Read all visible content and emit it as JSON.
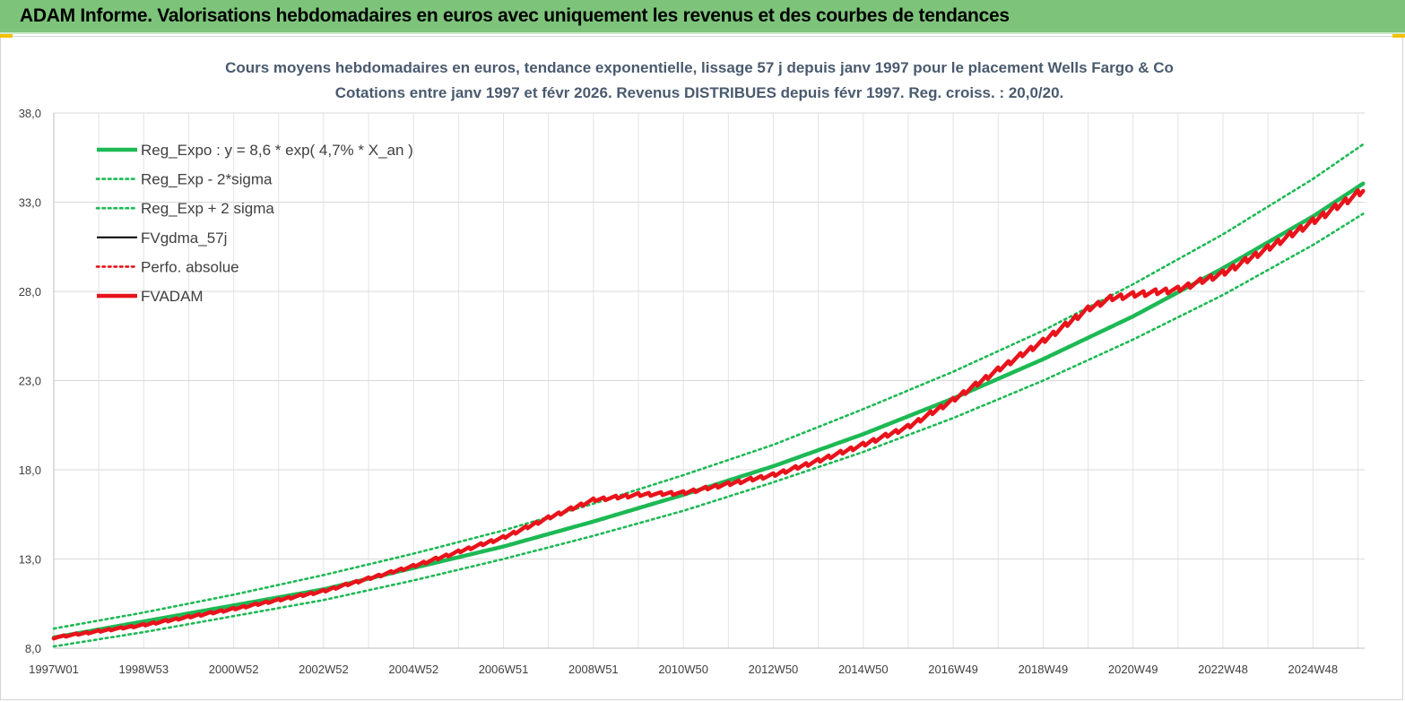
{
  "banner": {
    "title": "ADAM Informe. Valorisations hebdomadaires en euros avec uniquement les revenus et des courbes de tendances"
  },
  "colors": {
    "banner_bg": "#7dc47a",
    "trend": "#1db954",
    "fvadam": "#e8131b",
    "fvgdma": "#000000",
    "perfo": "#e8131b"
  },
  "chart_data": {
    "type": "line",
    "title": "Cours moyens hebdomadaires en euros, tendance exponentielle, lissage 57 j depuis janv 1997 pour le placement Wells Fargo & Co",
    "subtitle": "Cotations entre janv 1997 et févr 2026. Revenus DISTRIBUES depuis févr 1997. Reg. croiss. : 20,0/20.",
    "xlabel": "",
    "ylabel": "",
    "ylim": [
      8,
      38
    ],
    "y_ticks": [
      "8,0",
      "13,0",
      "18,0",
      "23,0",
      "28,0",
      "33,0",
      "38,0"
    ],
    "x_range": [
      1997.0,
      2026.15
    ],
    "x_ticks": [
      {
        "label": "1997W01",
        "year": 1997.0
      },
      {
        "label": "1998W53",
        "year": 1999.0
      },
      {
        "label": "2000W52",
        "year": 2001.0
      },
      {
        "label": "2002W52",
        "year": 2003.0
      },
      {
        "label": "2004W52",
        "year": 2005.0
      },
      {
        "label": "2006W51",
        "year": 2007.0
      },
      {
        "label": "2008W51",
        "year": 2009.0
      },
      {
        "label": "2010W50",
        "year": 2011.0
      },
      {
        "label": "2012W50",
        "year": 2013.0
      },
      {
        "label": "2014W50",
        "year": 2015.0
      },
      {
        "label": "2016W49",
        "year": 2017.0
      },
      {
        "label": "2018W49",
        "year": 2019.0
      },
      {
        "label": "2020W49",
        "year": 2021.0
      },
      {
        "label": "2022W48",
        "year": 2023.0
      },
      {
        "label": "2024W48",
        "year": 2025.0
      }
    ],
    "grid": true,
    "legend_position": "top-left",
    "series": [
      {
        "name": "Reg_Expo : y = 8,6 * exp( 4,7% *  X_an )",
        "style": "solid-thick",
        "color": "#1db954",
        "points": [
          [
            1997.0,
            8.6
          ],
          [
            1999.0,
            9.5
          ],
          [
            2001.0,
            10.4
          ],
          [
            2003.0,
            11.3
          ],
          [
            2005.0,
            12.5
          ],
          [
            2007.0,
            13.7
          ],
          [
            2009.0,
            15.1
          ],
          [
            2011.0,
            16.6
          ],
          [
            2013.0,
            18.2
          ],
          [
            2015.0,
            20.0
          ],
          [
            2017.0,
            22.0
          ],
          [
            2019.0,
            24.2
          ],
          [
            2021.0,
            26.6
          ],
          [
            2023.0,
            29.3
          ],
          [
            2025.0,
            32.2
          ],
          [
            2026.15,
            34.1
          ]
        ]
      },
      {
        "name": "Reg_Exp - 2*sigma",
        "style": "dotted",
        "color": "#1db954",
        "points": [
          [
            1997.0,
            8.1
          ],
          [
            1999.0,
            8.9
          ],
          [
            2001.0,
            9.8
          ],
          [
            2003.0,
            10.7
          ],
          [
            2005.0,
            11.8
          ],
          [
            2007.0,
            13.0
          ],
          [
            2009.0,
            14.3
          ],
          [
            2011.0,
            15.7
          ],
          [
            2013.0,
            17.3
          ],
          [
            2015.0,
            19.0
          ],
          [
            2017.0,
            20.9
          ],
          [
            2019.0,
            23.0
          ],
          [
            2021.0,
            25.3
          ],
          [
            2023.0,
            27.8
          ],
          [
            2025.0,
            30.6
          ],
          [
            2026.15,
            32.4
          ]
        ]
      },
      {
        "name": "Reg_Exp + 2 sigma",
        "style": "dotted",
        "color": "#1db954",
        "points": [
          [
            1997.0,
            9.1
          ],
          [
            1999.0,
            10.0
          ],
          [
            2001.0,
            11.0
          ],
          [
            2003.0,
            12.1
          ],
          [
            2005.0,
            13.3
          ],
          [
            2007.0,
            14.6
          ],
          [
            2009.0,
            16.1
          ],
          [
            2011.0,
            17.7
          ],
          [
            2013.0,
            19.4
          ],
          [
            2015.0,
            21.4
          ],
          [
            2017.0,
            23.5
          ],
          [
            2019.0,
            25.8
          ],
          [
            2021.0,
            28.4
          ],
          [
            2023.0,
            31.2
          ],
          [
            2025.0,
            34.3
          ],
          [
            2026.15,
            36.3
          ]
        ]
      },
      {
        "name": "FVgdma_57j",
        "style": "solid",
        "color": "#000000",
        "points": [
          [
            1997.0,
            8.6
          ],
          [
            1999.0,
            9.3
          ],
          [
            2001.0,
            10.2
          ],
          [
            2003.0,
            11.2
          ],
          [
            2005.0,
            12.6
          ],
          [
            2007.0,
            14.2
          ],
          [
            2008.0,
            15.3
          ],
          [
            2009.0,
            16.3
          ],
          [
            2010.0,
            16.6
          ],
          [
            2011.0,
            16.7
          ],
          [
            2012.0,
            17.2
          ],
          [
            2013.0,
            17.7
          ],
          [
            2014.0,
            18.5
          ],
          [
            2015.0,
            19.4
          ],
          [
            2016.0,
            20.4
          ],
          [
            2017.0,
            21.9
          ],
          [
            2018.0,
            23.6
          ],
          [
            2019.0,
            25.2
          ],
          [
            2020.0,
            27.0
          ],
          [
            2020.5,
            27.6
          ],
          [
            2021.0,
            27.8
          ],
          [
            2022.0,
            28.1
          ],
          [
            2023.0,
            29.0
          ],
          [
            2024.0,
            30.4
          ],
          [
            2025.0,
            31.9
          ],
          [
            2026.15,
            33.7
          ]
        ]
      },
      {
        "name": "Perfo. absolue",
        "style": "dotted",
        "color": "#e8131b",
        "points": [
          [
            1997.0,
            8.6
          ],
          [
            1999.0,
            9.3
          ],
          [
            2001.0,
            10.2
          ],
          [
            2003.0,
            11.2
          ],
          [
            2005.0,
            12.6
          ],
          [
            2007.0,
            14.2
          ],
          [
            2008.0,
            15.3
          ],
          [
            2009.0,
            16.3
          ],
          [
            2010.0,
            16.6
          ],
          [
            2011.0,
            16.7
          ],
          [
            2012.0,
            17.2
          ],
          [
            2013.0,
            17.7
          ],
          [
            2014.0,
            18.5
          ],
          [
            2015.0,
            19.4
          ],
          [
            2016.0,
            20.4
          ],
          [
            2017.0,
            21.9
          ],
          [
            2018.0,
            23.6
          ],
          [
            2019.0,
            25.2
          ],
          [
            2020.0,
            27.0
          ],
          [
            2020.5,
            27.6
          ],
          [
            2021.0,
            27.8
          ],
          [
            2022.0,
            28.1
          ],
          [
            2023.0,
            29.0
          ],
          [
            2024.0,
            30.4
          ],
          [
            2025.0,
            31.9
          ],
          [
            2026.15,
            33.7
          ]
        ]
      },
      {
        "name": "FVADAM",
        "style": "solid-thick",
        "color": "#e8131b",
        "points": [
          [
            1997.0,
            8.6
          ],
          [
            1999.0,
            9.3
          ],
          [
            2001.0,
            10.2
          ],
          [
            2003.0,
            11.2
          ],
          [
            2005.0,
            12.6
          ],
          [
            2007.0,
            14.2
          ],
          [
            2008.0,
            15.3
          ],
          [
            2009.0,
            16.3
          ],
          [
            2010.0,
            16.6
          ],
          [
            2011.0,
            16.7
          ],
          [
            2012.0,
            17.2
          ],
          [
            2013.0,
            17.7
          ],
          [
            2014.0,
            18.5
          ],
          [
            2015.0,
            19.4
          ],
          [
            2016.0,
            20.4
          ],
          [
            2017.0,
            21.9
          ],
          [
            2018.0,
            23.6
          ],
          [
            2019.0,
            25.2
          ],
          [
            2020.0,
            27.0
          ],
          [
            2020.5,
            27.6
          ],
          [
            2021.0,
            27.8
          ],
          [
            2022.0,
            28.1
          ],
          [
            2023.0,
            29.0
          ],
          [
            2024.0,
            30.4
          ],
          [
            2025.0,
            31.9
          ],
          [
            2026.15,
            33.7
          ]
        ]
      }
    ]
  }
}
